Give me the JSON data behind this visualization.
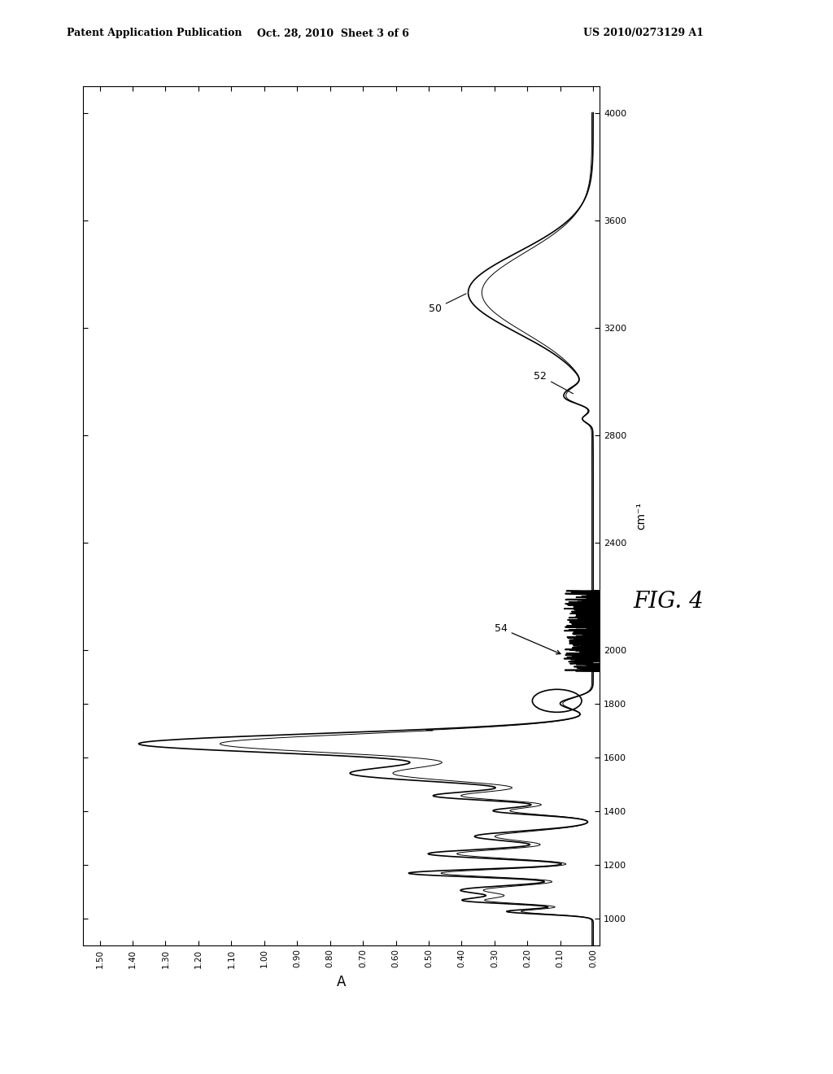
{
  "header_left": "Patent Application Publication",
  "header_mid": "Oct. 28, 2010  Sheet 3 of 6",
  "header_right": "US 2010/0273129 A1",
  "fig_label": "FIG. 4",
  "x_label": "A",
  "y_label": "cm⁻¹",
  "label_50": "50",
  "label_52": "52",
  "label_54": "54",
  "background_color": "#ffffff",
  "line_color": "#000000",
  "xticks": [
    1.5,
    1.4,
    1.3,
    1.2,
    1.1,
    1.0,
    0.9,
    0.8,
    0.7,
    0.6,
    0.5,
    0.4,
    0.3,
    0.2,
    0.1,
    0.0
  ],
  "yticks": [
    4000,
    3600,
    3200,
    2800,
    2400,
    2000,
    1800,
    1600,
    1400,
    1200,
    1000
  ],
  "xmin": 1.55,
  "xmax": -0.02,
  "ymin": 900,
  "ymax": 4100
}
